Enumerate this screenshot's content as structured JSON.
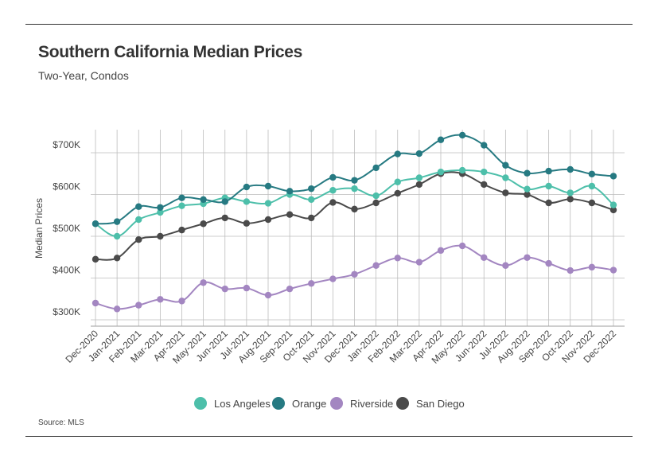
{
  "title": "Southern California Median Prices",
  "subtitle": "Two-Year, Condos",
  "source": "Source: MLS",
  "chart_data": {
    "type": "line",
    "title": "Southern California Median Prices",
    "subtitle": "Two-Year, Condos",
    "xlabel": "",
    "ylabel": "Median Prices",
    "ylim": [
      280000,
      760000
    ],
    "yticks": [
      300000,
      400000,
      500000,
      600000,
      700000
    ],
    "ytick_labels": [
      "$300K",
      "$400K",
      "$500K",
      "$600K",
      "$700K"
    ],
    "grid": true,
    "legend_position": "bottom-center",
    "categories": [
      "Dec-2020",
      "Jan-2021",
      "Feb-2021",
      "Mar-2021",
      "Apr-2021",
      "May-2021",
      "Jun-2021",
      "Jul-2021",
      "Aug-2021",
      "Sep-2021",
      "Oct-2021",
      "Nov-2021",
      "Dec-2021",
      "Jan-2022",
      "Feb-2022",
      "Mar-2022",
      "Apr-2022",
      "May-2022",
      "Jun-2022",
      "Jul-2022",
      "Aug-2022",
      "Sep-2022",
      "Oct-2022",
      "Nov-2022",
      "Dec-2022"
    ],
    "series": [
      {
        "name": "Los Angeles",
        "color": "#4dbfaa",
        "values": [
          530000,
          500000,
          540000,
          557000,
          573000,
          578000,
          592000,
          583000,
          579000,
          600000,
          588000,
          610000,
          614000,
          597000,
          630000,
          640000,
          654000,
          658000,
          654000,
          640000,
          613000,
          620000,
          604000,
          620000,
          575000
        ]
      },
      {
        "name": "Orange",
        "color": "#267a82",
        "values": [
          530000,
          535000,
          571000,
          569000,
          592000,
          588000,
          583000,
          618000,
          620000,
          608000,
          614000,
          641000,
          634000,
          664000,
          697000,
          698000,
          731000,
          742000,
          718000,
          670000,
          651000,
          656000,
          660000,
          649000,
          644000
        ]
      },
      {
        "name": "Riverside",
        "color": "#a386c1",
        "values": [
          340000,
          326000,
          335000,
          349000,
          345000,
          389000,
          374000,
          376000,
          359000,
          374000,
          387000,
          398000,
          409000,
          430000,
          448000,
          438000,
          466000,
          477000,
          449000,
          430000,
          449000,
          435000,
          418000,
          426000,
          419000
        ]
      },
      {
        "name": "San Diego",
        "color": "#4a4a4a",
        "values": [
          445000,
          448000,
          492000,
          500000,
          515000,
          530000,
          544000,
          531000,
          540000,
          552000,
          544000,
          581000,
          565000,
          580000,
          603000,
          624000,
          650000,
          650000,
          624000,
          604000,
          600000,
          580000,
          589000,
          580000,
          563000
        ]
      }
    ]
  }
}
